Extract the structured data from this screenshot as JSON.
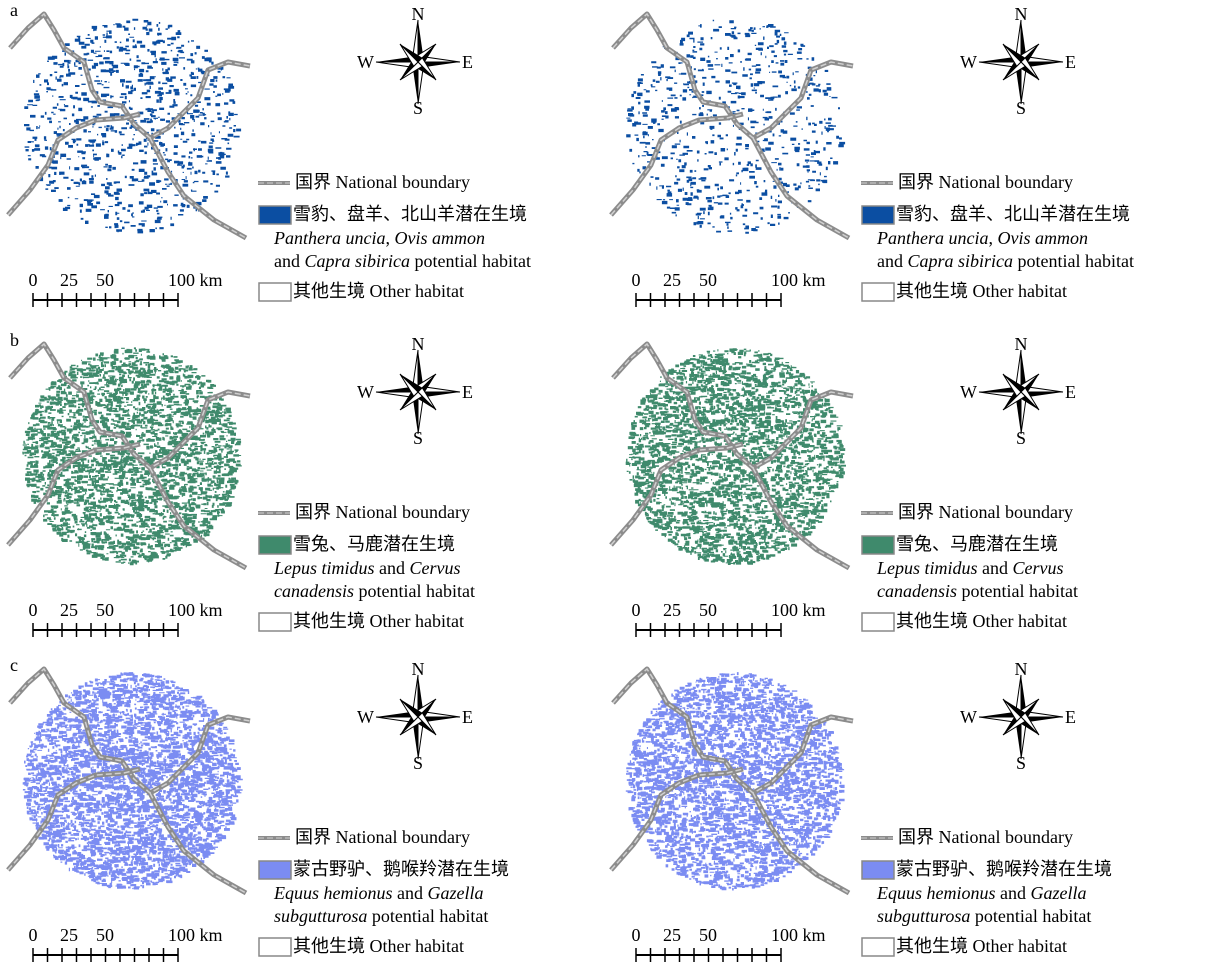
{
  "compass": {
    "n": "N",
    "s": "S",
    "w": "W",
    "e": "E"
  },
  "scale_bar": [
    "0",
    "25",
    "50",
    "100 km"
  ],
  "legend": {
    "boundary": "国界 National boundary",
    "other": "其他生境 Other habitat"
  },
  "rows": [
    {
      "label": "a",
      "color": "#0b4ea2",
      "habitat_cn": "雪豹、盘羊、北山羊潜在生境",
      "habitat_en": [
        [
          {
            "text": "Panthera uncia",
            "italic": true
          },
          {
            "text": ", ",
            "italic": false
          },
          {
            "text": "Ovis ammon",
            "italic": true
          }
        ],
        [
          {
            "text": "and ",
            "italic": false
          },
          {
            "text": "Capra sibirica",
            "italic": true
          },
          {
            "text": " potential habitat",
            "italic": false
          }
        ]
      ]
    },
    {
      "label": "b",
      "color": "#3f8a6c",
      "habitat_cn": "雪兔、马鹿潜在生境",
      "habitat_en": [
        [
          {
            "text": "Lepus timidus",
            "italic": true
          },
          {
            "text": " and ",
            "italic": false
          },
          {
            "text": "Cervus",
            "italic": true
          }
        ],
        [
          {
            "text": "canadensis",
            "italic": true
          },
          {
            "text": " potential habitat",
            "italic": false
          }
        ]
      ]
    },
    {
      "label": "c",
      "color": "#7b8cf2",
      "habitat_cn": "蒙古野驴、鹅喉羚潜在生境",
      "habitat_en": [
        [
          {
            "text": "Equus hemionus",
            "italic": true
          },
          {
            "text": " and ",
            "italic": false
          },
          {
            "text": "Gazella",
            "italic": true
          }
        ],
        [
          {
            "text": "subgutturosa",
            "italic": true
          },
          {
            "text": " potential habitat",
            "italic": false
          }
        ]
      ]
    }
  ]
}
